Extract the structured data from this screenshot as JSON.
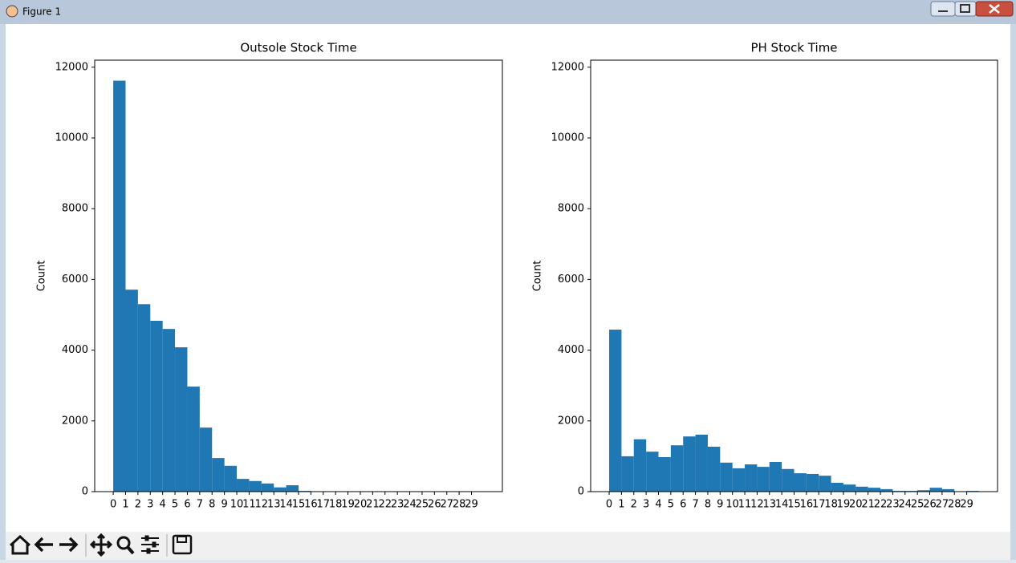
{
  "window": {
    "title": "Figure 1"
  },
  "chart_data": [
    {
      "type": "histogram",
      "title": "Outsole Stock Time",
      "ylabel": "Count",
      "color": "#1f77b4",
      "bins": [
        0,
        1,
        2,
        3,
        4,
        5,
        6,
        7,
        8,
        9,
        10,
        11,
        12,
        13,
        14,
        15,
        16,
        17,
        18,
        19,
        20,
        21,
        22,
        23,
        24,
        25,
        26,
        27,
        28,
        29,
        30
      ],
      "values": [
        11620,
        5710,
        5300,
        4830,
        4600,
        4080,
        2970,
        1810,
        950,
        730,
        360,
        300,
        230,
        120,
        180,
        20,
        10,
        5,
        3,
        2,
        2,
        1,
        1,
        1,
        1,
        0,
        0,
        0,
        0,
        1
      ],
      "xlim": [
        -1.5,
        31.5
      ],
      "ylim": [
        0,
        12200
      ],
      "xticks": [
        0,
        1,
        2,
        3,
        4,
        5,
        6,
        7,
        8,
        9,
        10,
        11,
        12,
        13,
        14,
        15,
        16,
        17,
        18,
        19,
        20,
        21,
        22,
        23,
        24,
        25,
        26,
        27,
        28,
        29
      ],
      "yticks": [
        0,
        2000,
        4000,
        6000,
        8000,
        10000,
        12000
      ]
    },
    {
      "type": "histogram",
      "title": "PH Stock Time",
      "ylabel": "Count",
      "color": "#1f77b4",
      "bins": [
        0,
        1,
        2,
        3,
        4,
        5,
        6,
        7,
        8,
        9,
        10,
        11,
        12,
        13,
        14,
        15,
        16,
        17,
        18,
        19,
        20,
        21,
        22,
        23,
        24,
        25,
        26,
        27,
        28,
        29,
        30
      ],
      "values": [
        4580,
        1000,
        1480,
        1130,
        975,
        1310,
        1560,
        1610,
        1270,
        820,
        660,
        770,
        700,
        840,
        640,
        520,
        500,
        450,
        250,
        200,
        140,
        110,
        70,
        20,
        20,
        40,
        110,
        70,
        0,
        20
      ],
      "xlim": [
        -1.5,
        31.5
      ],
      "ylim": [
        0,
        12200
      ],
      "xticks": [
        0,
        1,
        2,
        3,
        4,
        5,
        6,
        7,
        8,
        9,
        10,
        11,
        12,
        13,
        14,
        15,
        16,
        17,
        18,
        19,
        20,
        21,
        22,
        23,
        24,
        25,
        26,
        27,
        28,
        29
      ],
      "yticks": [
        0,
        2000,
        4000,
        6000,
        8000,
        10000,
        12000
      ]
    }
  ]
}
